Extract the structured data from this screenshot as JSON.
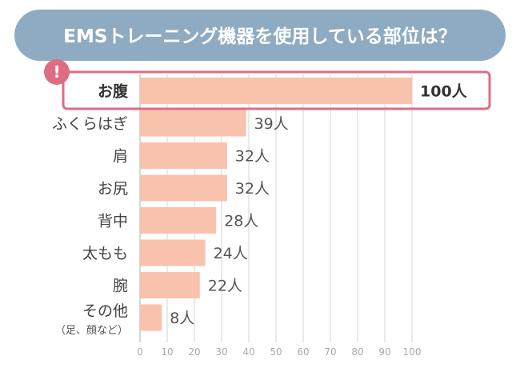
{
  "title": "EMSトレーニング機器を使用している部位は？",
  "alert_symbol": "!",
  "colors": {
    "banner": "#8eabc2",
    "bar": "#f9c2ad",
    "highlight": "#df6d82",
    "grid": "#d4d4d4"
  },
  "chart_data": {
    "type": "bar",
    "orientation": "horizontal",
    "categories": [
      "お腹",
      "ふくらはぎ",
      "肩",
      "お尻",
      "背中",
      "太もも",
      "腕",
      "その他"
    ],
    "category_notes": [
      "",
      "",
      "",
      "",
      "",
      "",
      "",
      "（足、顔など）"
    ],
    "values": [
      100,
      39,
      32,
      32,
      28,
      24,
      22,
      8
    ],
    "value_unit": "人",
    "highlight_index": 0,
    "xlim": [
      0,
      100
    ],
    "xticks": [
      0,
      10,
      20,
      30,
      40,
      50,
      60,
      70,
      80,
      90,
      100
    ],
    "grid": true
  }
}
